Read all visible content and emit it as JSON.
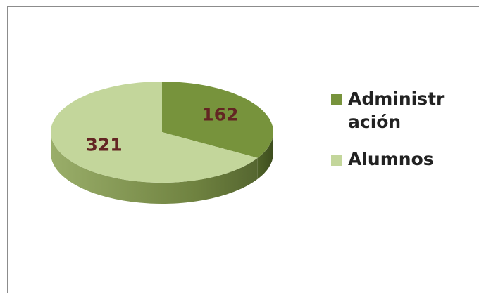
{
  "chart_data": {
    "type": "pie",
    "categories": [
      "Administración",
      "Alumnos"
    ],
    "values": [
      162,
      321
    ],
    "colors": [
      "#77933c",
      "#c3d69b"
    ]
  }
}
